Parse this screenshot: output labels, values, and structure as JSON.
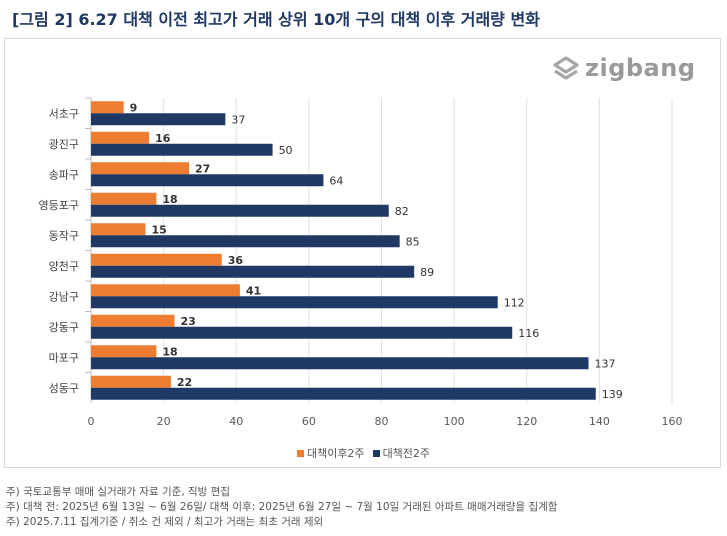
{
  "header": {
    "title": "[그림 2] 6.27 대책 이전 최고가 거래 상위 10개 구의 대책 이후 거래량 변화"
  },
  "logo": {
    "text": "zigbang",
    "icon": "zigbang-logo-icon"
  },
  "colors": {
    "after": "#ed7d31",
    "before": "#203864",
    "axis_text": "#595959",
    "grid": "#e0e0e0"
  },
  "chart_data": {
    "type": "bar",
    "orientation": "horizontal",
    "categories": [
      "서초구",
      "광진구",
      "송파구",
      "영등포구",
      "동작구",
      "양천구",
      "강남구",
      "강동구",
      "마포구",
      "성동구"
    ],
    "series": [
      {
        "name": "대책이후2주",
        "values": [
          9,
          16,
          27,
          18,
          15,
          36,
          41,
          23,
          18,
          22
        ]
      },
      {
        "name": "대책전2주",
        "values": [
          37,
          50,
          64,
          82,
          85,
          89,
          112,
          116,
          137,
          139
        ]
      }
    ],
    "xlim": [
      0,
      160
    ],
    "xticks": [
      "0",
      "20",
      "40",
      "60",
      "80",
      "100",
      "120",
      "140",
      "160"
    ],
    "grid": true,
    "legend_position": "bottom"
  },
  "notes": [
    "주) 국토교통부 매매 실거래가 자료 기준, 직방 편집",
    "주) 대책 전: 2025년 6월 13일 ~ 6월 26일/ 대책 이후: 2025년 6월 27일 ~ 7월 10일 거래된 아파트 매매거래량을 집계함",
    "주) 2025.7.11 집계기준 / 취소 건 제외  / 최고가 거래는 최초 거래 제외"
  ]
}
